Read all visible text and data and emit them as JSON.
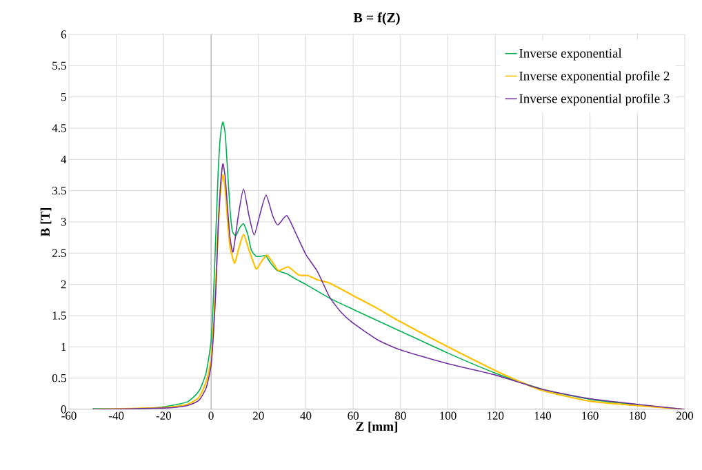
{
  "chart_data": {
    "type": "line",
    "title": "B = f(Z)",
    "xlabel": "Z [mm]",
    "ylabel": "B [T]",
    "xlim": [
      -60,
      200
    ],
    "xticks": [
      -60,
      -40,
      -20,
      0,
      20,
      40,
      60,
      80,
      100,
      120,
      140,
      160,
      180,
      200
    ],
    "ylim": [
      0,
      6
    ],
    "yticks": [
      0,
      0.5,
      1,
      1.5,
      2,
      2.5,
      3,
      3.5,
      4,
      4.5,
      5,
      5.5,
      6
    ],
    "grid": true,
    "legend": "top right",
    "marker": "none",
    "line_style": "solid",
    "series": [
      {
        "name": "Inverse exponential",
        "color": "#00b050",
        "x": [
          -50,
          -30,
          -20,
          -10,
          -5,
          -2,
          0,
          1,
          2,
          3,
          4,
          5,
          6,
          7,
          8,
          9,
          10.5,
          12,
          13.7,
          15.5,
          17,
          19,
          21,
          23,
          25,
          28,
          32,
          36,
          40,
          50,
          60,
          80,
          100,
          120,
          140,
          160,
          180,
          200
        ],
        "values": [
          0.01,
          0.01,
          0.04,
          0.12,
          0.3,
          0.6,
          1.1,
          1.8,
          2.8,
          3.8,
          4.4,
          4.6,
          4.4,
          3.8,
          3.2,
          2.85,
          2.78,
          2.9,
          2.97,
          2.8,
          2.55,
          2.45,
          2.45,
          2.46,
          2.35,
          2.22,
          2.17,
          2.08,
          2.0,
          1.78,
          1.6,
          1.25,
          0.9,
          0.58,
          0.32,
          0.16,
          0.07,
          0
        ]
      },
      {
        "name": "Inverse exponential profile 2",
        "color": "#ffc000",
        "x": [
          -50,
          -20,
          -10,
          -5,
          -2,
          0,
          1,
          2,
          3,
          4,
          5,
          6,
          7,
          8,
          9.9,
          11.5,
          13.7,
          16,
          19,
          21,
          23.5,
          26,
          28.5,
          32.5,
          37,
          41,
          45,
          50,
          60,
          70,
          80,
          100,
          120,
          130,
          140,
          160,
          180,
          200
        ],
        "values": [
          0,
          0.03,
          0.08,
          0.2,
          0.45,
          0.8,
          1.3,
          2.0,
          2.9,
          3.5,
          3.76,
          3.5,
          3.0,
          2.6,
          2.34,
          2.55,
          2.8,
          2.55,
          2.25,
          2.35,
          2.47,
          2.35,
          2.22,
          2.28,
          2.15,
          2.14,
          2.07,
          2.02,
          1.82,
          1.62,
          1.4,
          1.0,
          0.62,
          0.45,
          0.3,
          0.13,
          0.06,
          0
        ]
      },
      {
        "name": "Inverse exponential profile 3",
        "color": "#7030a0",
        "x": [
          -50,
          -20,
          -10,
          -5,
          -2,
          0,
          1,
          2,
          3,
          4,
          5,
          6,
          7,
          8,
          9.3,
          11.5,
          13.7,
          16,
          18.2,
          20.5,
          23.2,
          26,
          28.2,
          32,
          36,
          40,
          45,
          50,
          55,
          60,
          70,
          80,
          100,
          120,
          140,
          160,
          180,
          200
        ],
        "values": [
          0,
          0.02,
          0.06,
          0.15,
          0.35,
          0.7,
          1.2,
          1.9,
          2.9,
          3.6,
          3.93,
          3.7,
          3.2,
          2.75,
          2.52,
          3.1,
          3.53,
          3.1,
          2.79,
          3.1,
          3.43,
          3.1,
          2.95,
          3.1,
          2.8,
          2.48,
          2.2,
          1.8,
          1.55,
          1.38,
          1.12,
          0.95,
          0.73,
          0.55,
          0.32,
          0.17,
          0.08,
          0
        ]
      }
    ]
  }
}
